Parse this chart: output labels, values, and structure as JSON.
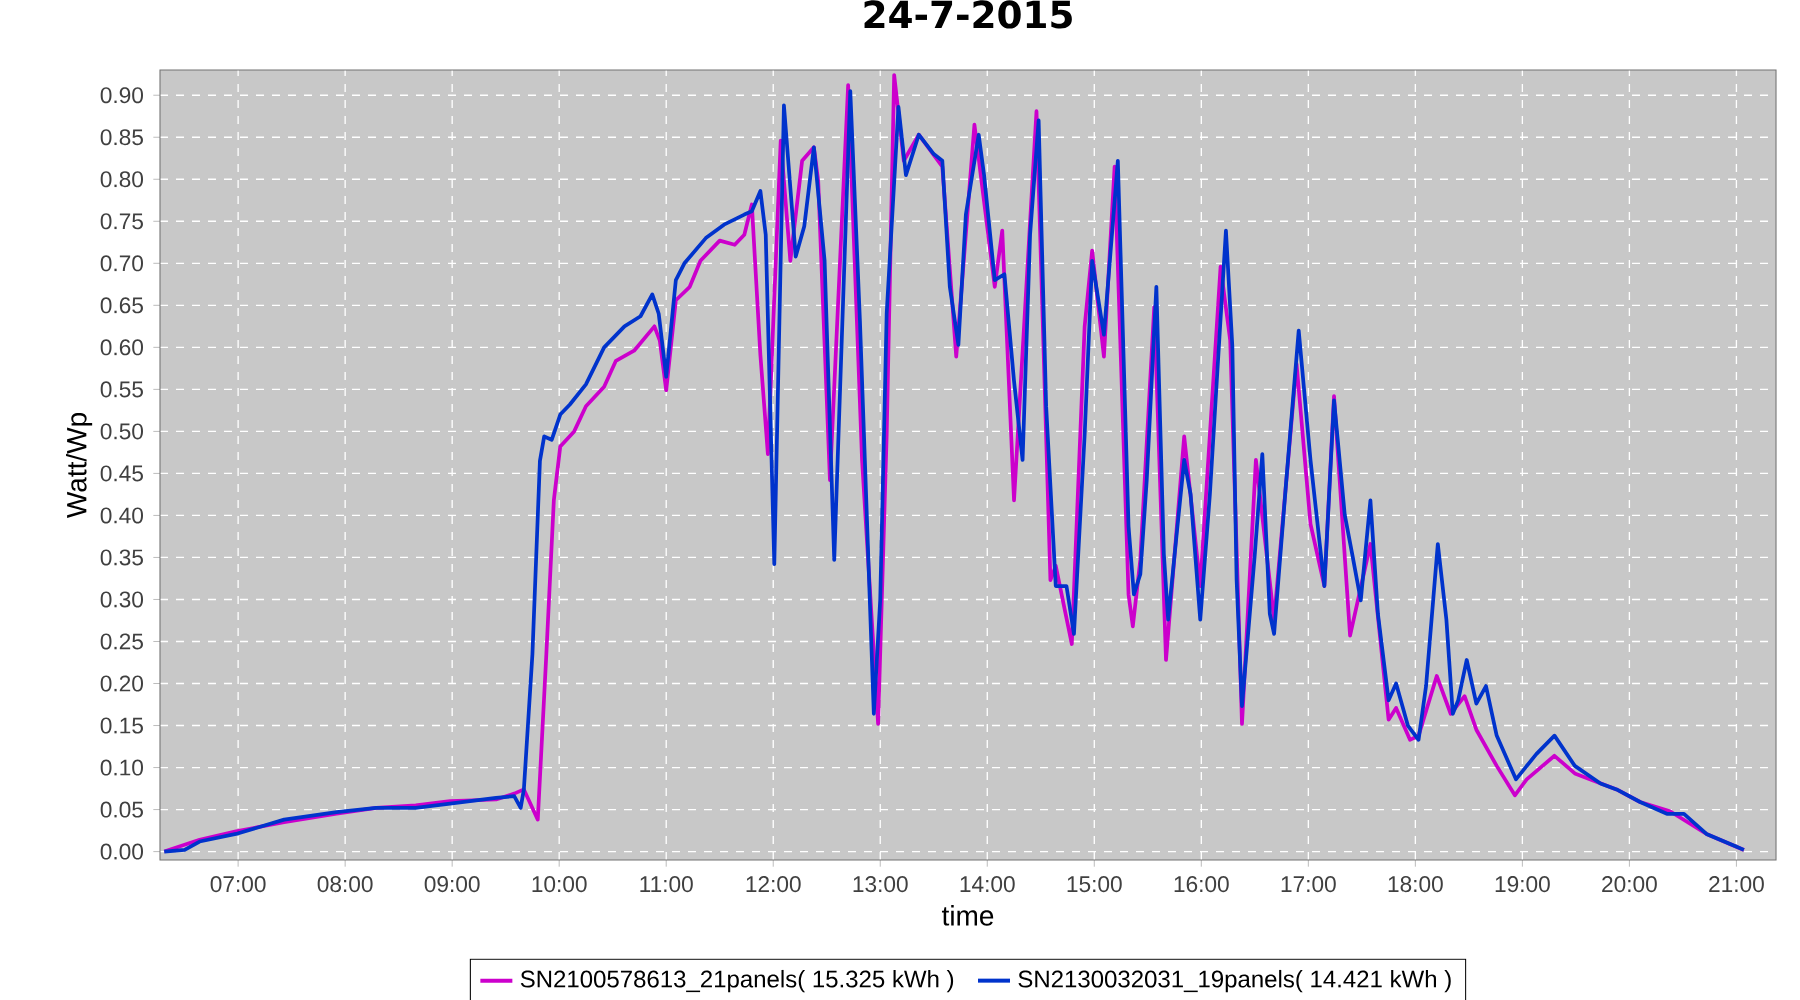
{
  "chart_data": {
    "type": "line",
    "title": "24-7-2015",
    "xlabel": "time",
    "ylabel": "Watt/Wp",
    "xlim": [
      6.27,
      21.37
    ],
    "ylim": [
      -0.01,
      0.93
    ],
    "xticks": [
      {
        "value": 7,
        "label": "07:00"
      },
      {
        "value": 8,
        "label": "08:00"
      },
      {
        "value": 9,
        "label": "09:00"
      },
      {
        "value": 10,
        "label": "10:00"
      },
      {
        "value": 11,
        "label": "11:00"
      },
      {
        "value": 12,
        "label": "12:00"
      },
      {
        "value": 13,
        "label": "13:00"
      },
      {
        "value": 14,
        "label": "14:00"
      },
      {
        "value": 15,
        "label": "15:00"
      },
      {
        "value": 16,
        "label": "16:00"
      },
      {
        "value": 17,
        "label": "17:00"
      },
      {
        "value": 18,
        "label": "18:00"
      },
      {
        "value": 19,
        "label": "19:00"
      },
      {
        "value": 20,
        "label": "20:00"
      },
      {
        "value": 21,
        "label": "21:00"
      }
    ],
    "yticks": [
      {
        "value": 0,
        "label": "0.00"
      },
      {
        "value": 0.05,
        "label": "0.05"
      },
      {
        "value": 0.1,
        "label": "0.10"
      },
      {
        "value": 0.15,
        "label": "0.15"
      },
      {
        "value": 0.2,
        "label": "0.20"
      },
      {
        "value": 0.25,
        "label": "0.25"
      },
      {
        "value": 0.3,
        "label": "0.30"
      },
      {
        "value": 0.35,
        "label": "0.35"
      },
      {
        "value": 0.4,
        "label": "0.40"
      },
      {
        "value": 0.45,
        "label": "0.45"
      },
      {
        "value": 0.5,
        "label": "0.50"
      },
      {
        "value": 0.55,
        "label": "0.55"
      },
      {
        "value": 0.6,
        "label": "0.60"
      },
      {
        "value": 0.65,
        "label": "0.65"
      },
      {
        "value": 0.7,
        "label": "0.70"
      },
      {
        "value": 0.75,
        "label": "0.75"
      },
      {
        "value": 0.8,
        "label": "0.80"
      },
      {
        "value": 0.85,
        "label": "0.85"
      },
      {
        "value": 0.9,
        "label": "0.90"
      }
    ],
    "grid": true,
    "legend": "bottom",
    "line_style": "solid",
    "series": [
      {
        "name": "SN2100578613_21panels( 15.325 kWh )",
        "color": "#cc00cc",
        "x": [
          6.31,
          6.64,
          6.98,
          7.43,
          7.92,
          8.29,
          8.66,
          8.98,
          9.41,
          9.58,
          9.67,
          9.8,
          9.88,
          9.95,
          10.01,
          10.14,
          10.25,
          10.42,
          10.53,
          10.7,
          10.89,
          10.94,
          11.0,
          11.09,
          11.22,
          11.32,
          11.5,
          11.64,
          11.73,
          11.8,
          11.88,
          11.95,
          12.07,
          12.16,
          12.27,
          12.38,
          12.42,
          12.53,
          12.7,
          12.83,
          12.98,
          13.06,
          13.13,
          13.22,
          13.36,
          13.58,
          13.71,
          13.88,
          14.07,
          14.14,
          14.25,
          14.46,
          14.59,
          14.64,
          14.79,
          14.91,
          14.98,
          15.09,
          15.19,
          15.32,
          15.36,
          15.43,
          15.56,
          15.67,
          15.84,
          15.99,
          16.18,
          16.27,
          16.38,
          16.51,
          16.68,
          16.89,
          17.02,
          17.15,
          17.24,
          17.39,
          17.58,
          17.75,
          17.82,
          17.95,
          18.03,
          18.2,
          18.33,
          18.46,
          18.57,
          18.76,
          18.93,
          19.04,
          19.3,
          19.49,
          19.88,
          20.1,
          20.38,
          20.72,
          21.07
        ],
        "values": [
          0.0,
          0.014,
          0.024,
          0.035,
          0.045,
          0.052,
          0.055,
          0.06,
          0.062,
          0.069,
          0.074,
          0.038,
          0.235,
          0.418,
          0.482,
          0.5,
          0.53,
          0.553,
          0.584,
          0.596,
          0.625,
          0.608,
          0.549,
          0.656,
          0.672,
          0.703,
          0.727,
          0.722,
          0.734,
          0.77,
          0.591,
          0.473,
          0.846,
          0.703,
          0.822,
          0.838,
          0.798,
          0.442,
          0.912,
          0.466,
          0.152,
          0.496,
          0.924,
          0.822,
          0.853,
          0.815,
          0.589,
          0.865,
          0.672,
          0.739,
          0.418,
          0.881,
          0.323,
          0.34,
          0.247,
          0.625,
          0.715,
          0.589,
          0.815,
          0.306,
          0.268,
          0.347,
          0.648,
          0.228,
          0.494,
          0.316,
          0.696,
          0.608,
          0.152,
          0.466,
          0.276,
          0.58,
          0.39,
          0.316,
          0.542,
          0.257,
          0.366,
          0.157,
          0.171,
          0.133,
          0.138,
          0.209,
          0.164,
          0.185,
          0.145,
          0.102,
          0.067,
          0.086,
          0.114,
          0.093,
          0.074,
          0.059,
          0.048,
          0.021,
          0.002
        ]
      },
      {
        "name": "SN2130032031_19panels( 14.421 kWh )",
        "color": "#0033cc",
        "x": [
          6.31,
          6.5,
          6.64,
          6.98,
          7.43,
          7.92,
          8.29,
          8.66,
          8.98,
          9.41,
          9.58,
          9.64,
          9.67,
          9.75,
          9.82,
          9.86,
          9.93,
          10.01,
          10.1,
          10.25,
          10.42,
          10.61,
          10.76,
          10.87,
          10.93,
          11.0,
          11.09,
          11.17,
          11.37,
          11.54,
          11.73,
          11.8,
          11.88,
          11.93,
          12.01,
          12.1,
          12.21,
          12.29,
          12.38,
          12.48,
          12.57,
          12.72,
          12.81,
          12.94,
          13.0,
          13.06,
          13.17,
          13.24,
          13.36,
          13.5,
          13.58,
          13.65,
          13.73,
          13.8,
          13.92,
          13.97,
          14.07,
          14.16,
          14.25,
          14.33,
          14.4,
          14.48,
          14.55,
          14.64,
          14.74,
          14.81,
          14.91,
          14.98,
          15.09,
          15.22,
          15.32,
          15.37,
          15.43,
          15.49,
          15.58,
          15.65,
          15.69,
          15.77,
          15.84,
          15.9,
          15.99,
          16.08,
          16.23,
          16.29,
          16.33,
          16.38,
          16.5,
          16.57,
          16.64,
          16.68,
          16.79,
          16.91,
          17.02,
          17.15,
          17.24,
          17.34,
          17.41,
          17.49,
          17.58,
          17.65,
          17.75,
          17.82,
          17.93,
          18.03,
          18.1,
          18.21,
          18.29,
          18.35,
          18.4,
          18.48,
          18.57,
          18.66,
          18.76,
          18.94,
          19.13,
          19.3,
          19.49,
          19.73,
          19.88,
          20.1,
          20.35,
          20.51,
          20.72,
          20.98,
          21.07
        ],
        "values": [
          0.0,
          0.002,
          0.012,
          0.021,
          0.038,
          0.047,
          0.052,
          0.052,
          0.057,
          0.064,
          0.066,
          0.052,
          0.074,
          0.235,
          0.465,
          0.494,
          0.49,
          0.52,
          0.532,
          0.556,
          0.6,
          0.625,
          0.637,
          0.663,
          0.64,
          0.565,
          0.68,
          0.7,
          0.73,
          0.746,
          0.758,
          0.762,
          0.786,
          0.734,
          0.342,
          0.888,
          0.708,
          0.744,
          0.838,
          0.703,
          0.347,
          0.905,
          0.632,
          0.164,
          0.3,
          0.64,
          0.886,
          0.805,
          0.853,
          0.83,
          0.822,
          0.672,
          0.603,
          0.758,
          0.853,
          0.805,
          0.68,
          0.687,
          0.56,
          0.466,
          0.734,
          0.87,
          0.53,
          0.316,
          0.316,
          0.259,
          0.496,
          0.703,
          0.615,
          0.822,
          0.387,
          0.306,
          0.33,
          0.442,
          0.672,
          0.354,
          0.276,
          0.378,
          0.466,
          0.425,
          0.276,
          0.425,
          0.739,
          0.601,
          0.323,
          0.173,
          0.354,
          0.473,
          0.283,
          0.259,
          0.435,
          0.62,
          0.466,
          0.316,
          0.537,
          0.401,
          0.354,
          0.299,
          0.418,
          0.283,
          0.18,
          0.2,
          0.15,
          0.133,
          0.197,
          0.366,
          0.276,
          0.164,
          0.18,
          0.228,
          0.176,
          0.197,
          0.138,
          0.086,
          0.116,
          0.138,
          0.102,
          0.081,
          0.074,
          0.059,
          0.045,
          0.045,
          0.021,
          0.007,
          0.002
        ]
      }
    ]
  }
}
